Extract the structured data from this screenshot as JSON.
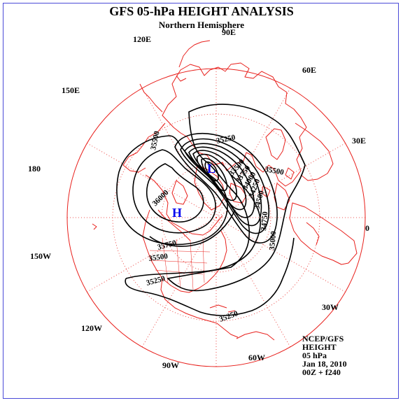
{
  "title": "GFS 05-hPa HEIGHT ANALYSIS",
  "subtitle": "Northern Hemisphere",
  "longitude_labels": [
    {
      "key": "90E",
      "text": "90E"
    },
    {
      "key": "60E",
      "text": "60E"
    },
    {
      "key": "30E",
      "text": "30E"
    },
    {
      "key": "0",
      "text": "0"
    },
    {
      "key": "30W",
      "text": "30W"
    },
    {
      "key": "60W",
      "text": "60W"
    },
    {
      "key": "90W",
      "text": "90W"
    },
    {
      "key": "120W",
      "text": "120W"
    },
    {
      "key": "150W",
      "text": "150W"
    },
    {
      "key": "180",
      "text": "180"
    },
    {
      "key": "150E",
      "text": "150E"
    },
    {
      "key": "120E",
      "text": "120E"
    }
  ],
  "contour_labels": [
    "35500",
    "35250",
    "35500",
    "36000",
    "35750",
    "35500",
    "35250",
    "35250",
    "35000",
    "34750",
    "34500",
    "34250",
    "34000",
    "33750",
    "33500"
  ],
  "centers": {
    "low": "L",
    "high": "H"
  },
  "info": {
    "source": "NCEP/GFS",
    "field": "HEIGHT",
    "level": "05 hPa",
    "date": "Jan 18, 2010",
    "time": "00Z + f240"
  },
  "colors": {
    "coastline": "#e8201c",
    "grid": "#e8201c",
    "contour": "#000000",
    "center_marker": "#0000ee",
    "frame": "#4a4ad8"
  }
}
